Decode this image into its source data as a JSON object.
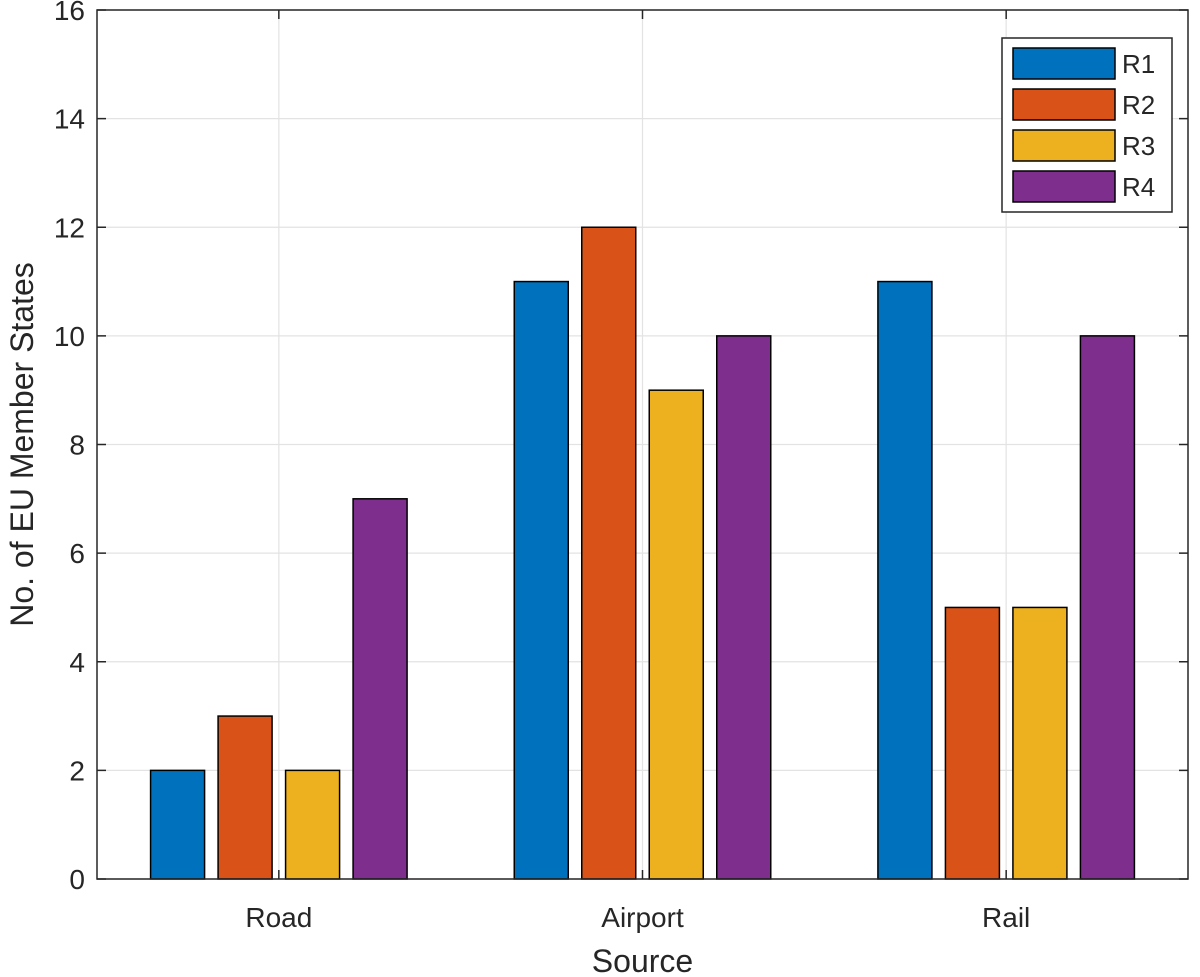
{
  "chart_data": {
    "type": "bar",
    "categories": [
      "Road",
      "Airport",
      "Rail"
    ],
    "series": [
      {
        "name": "R1",
        "values": [
          2,
          11,
          11
        ]
      },
      {
        "name": "R2",
        "values": [
          3,
          12,
          5
        ]
      },
      {
        "name": "R3",
        "values": [
          2,
          9,
          5
        ]
      },
      {
        "name": "R4",
        "values": [
          7,
          10,
          10
        ]
      }
    ],
    "title": "",
    "xlabel": "Source",
    "ylabel": "No. of EU Member States",
    "ylim": [
      0,
      16
    ],
    "yticks": [
      0,
      2,
      4,
      6,
      8,
      10,
      12,
      14,
      16
    ],
    "grid": true,
    "legend_position": "top-right",
    "colors": [
      "#0072BD",
      "#D95319",
      "#EDB120",
      "#7E2F8E"
    ]
  }
}
